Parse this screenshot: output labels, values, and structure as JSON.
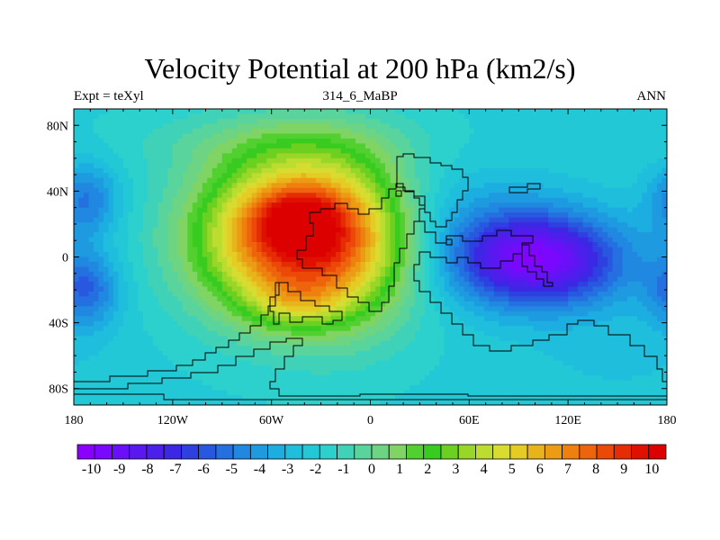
{
  "title": "Velocity Potential at 200 hPa (km2/s)",
  "left_string": "Expt = teXyl",
  "center_string": "314_6_MaBP",
  "right_string": "ANN",
  "chart_data": {
    "type": "heatmap",
    "projection": "cylindrical equidistant",
    "field": "velocity potential, 200 hPa, annual mean",
    "units": "km2/s",
    "xlim": [
      -180,
      180
    ],
    "ylim": [
      -90,
      90
    ],
    "x_ticks": [
      {
        "value": -180,
        "label": "180"
      },
      {
        "value": -120,
        "label": "120W"
      },
      {
        "value": -60,
        "label": "60W"
      },
      {
        "value": 0,
        "label": "0"
      },
      {
        "value": 60,
        "label": "60E"
      },
      {
        "value": 120,
        "label": "120E"
      },
      {
        "value": 180,
        "label": "180"
      }
    ],
    "y_ticks": [
      {
        "value": 80,
        "label": "80N"
      },
      {
        "value": 40,
        "label": "40N"
      },
      {
        "value": 0,
        "label": "0"
      },
      {
        "value": -40,
        "label": "40S"
      },
      {
        "value": -80,
        "label": "80S"
      }
    ],
    "colorbar": {
      "min": -10.5,
      "max": 10.5,
      "step": 0.5,
      "labels": [
        -10,
        -9,
        -8,
        -7,
        -6,
        -5,
        -4,
        -3,
        -2,
        -1,
        0,
        1,
        2,
        3,
        4,
        5,
        6,
        7,
        8,
        9,
        10
      ],
      "colors": [
        "#8a00ff",
        "#7a08ff",
        "#6a10f8",
        "#5a18f0",
        "#4a20ea",
        "#3c28e4",
        "#2f40e0",
        "#2858e0",
        "#2470e0",
        "#2088e0",
        "#1e9ae0",
        "#1caee0",
        "#1ebedc",
        "#22c8d6",
        "#2cd0cc",
        "#40d2b8",
        "#58d49c",
        "#6cd482",
        "#80d464",
        "#52d030",
        "#38cc20",
        "#6cd020",
        "#98d628",
        "#bcdc30",
        "#d8dc30",
        "#e4cc24",
        "#e8b41c",
        "#ec9c14",
        "#ee800e",
        "#ee640c",
        "#ec4808",
        "#e62c04",
        "#e01000",
        "#dc0000"
      ]
    },
    "centers": [
      {
        "lon": -45,
        "lat": 25,
        "value": 9.8,
        "sign": "positive"
      },
      {
        "lon": -45,
        "lat": -28,
        "value": 8.2,
        "sign": "positive"
      },
      {
        "lon": 100,
        "lat": -2,
        "value": -9.6,
        "sign": "negative"
      },
      {
        "lon": -172,
        "lat": -20,
        "value": -5.2,
        "sign": "negative"
      },
      {
        "lon": -172,
        "lat": 35,
        "value": -4.8,
        "sign": "negative"
      }
    ]
  }
}
